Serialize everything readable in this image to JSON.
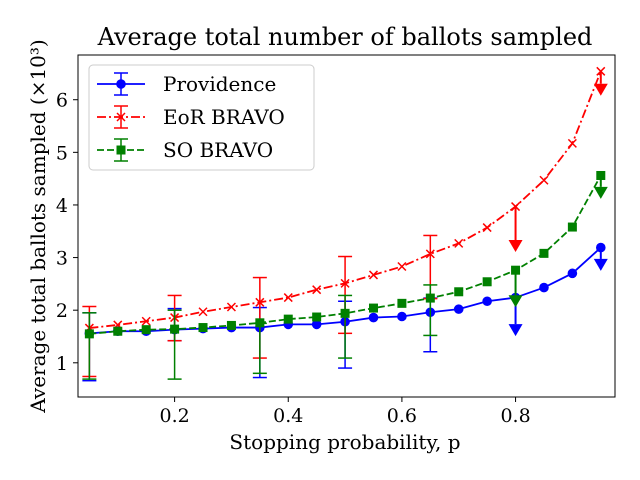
{
  "chart_data": {
    "type": "line",
    "title": "Average total number of ballots sampled",
    "xlabel": "Stopping probability, p",
    "ylabel": "Average total ballots sampled (×10³)",
    "xlim": [
      0.03,
      0.975
    ],
    "ylim": [
      0.35,
      6.85
    ],
    "xticks": [
      0.2,
      0.4,
      0.6,
      0.8
    ],
    "xtick_labels": [
      "0.2",
      "0.4",
      "0.6",
      "0.8"
    ],
    "yticks": [
      1,
      2,
      3,
      4,
      5,
      6
    ],
    "ytick_labels": [
      "1",
      "2",
      "3",
      "4",
      "5",
      "6"
    ],
    "grid": false,
    "legend_position": "top-left",
    "x": [
      0.05,
      0.1,
      0.15,
      0.2,
      0.25,
      0.3,
      0.35,
      0.4,
      0.45,
      0.5,
      0.55,
      0.6,
      0.65,
      0.7,
      0.75,
      0.8,
      0.85,
      0.9,
      0.95
    ],
    "series": [
      {
        "name": "Providence",
        "color": "#0000ff",
        "line_style": "solid",
        "marker": "circle",
        "values": [
          1.56,
          1.6,
          1.6,
          1.63,
          1.65,
          1.67,
          1.67,
          1.73,
          1.73,
          1.78,
          1.86,
          1.88,
          1.96,
          2.02,
          2.17,
          2.24,
          2.43,
          2.7,
          3.19
        ],
        "error_bars": [
          {
            "x": 0.05,
            "low": 0.66,
            "high": 1.95
          },
          {
            "x": 0.2,
            "low": 1.42,
            "high": 2.03
          },
          {
            "x": 0.35,
            "low": 0.72,
            "high": 2.05
          },
          {
            "x": 0.5,
            "low": 0.9,
            "high": 2.17
          },
          {
            "x": 0.65,
            "low": 1.21,
            "high": 2.23
          }
        ],
        "arrows": [
          {
            "x": 0.8,
            "from": 2.24,
            "to": 1.62
          },
          {
            "x": 0.95,
            "from": 3.19,
            "to": 2.86
          }
        ]
      },
      {
        "name": "EoR BRAVO",
        "color": "#ff0000",
        "line_style": "dashdot",
        "marker": "x",
        "values": [
          1.66,
          1.72,
          1.79,
          1.86,
          1.97,
          2.06,
          2.15,
          2.24,
          2.39,
          2.51,
          2.67,
          2.83,
          3.07,
          3.27,
          3.57,
          3.97,
          4.47,
          5.17,
          6.54
        ],
        "error_bars": [
          {
            "x": 0.05,
            "low": 0.74,
            "high": 2.07
          },
          {
            "x": 0.2,
            "low": 1.42,
            "high": 2.28
          },
          {
            "x": 0.35,
            "low": 1.09,
            "high": 2.62
          },
          {
            "x": 0.5,
            "low": 1.56,
            "high": 3.02
          },
          {
            "x": 0.65,
            "low": 2.22,
            "high": 3.42
          }
        ],
        "arrows": [
          {
            "x": 0.8,
            "from": 3.97,
            "to": 3.22
          },
          {
            "x": 0.95,
            "from": 6.54,
            "to": 6.19
          }
        ]
      },
      {
        "name": "SO BRAVO",
        "color": "#008000",
        "line_style": "dashed",
        "marker": "square",
        "values": [
          1.55,
          1.6,
          1.63,
          1.64,
          1.67,
          1.71,
          1.76,
          1.83,
          1.87,
          1.94,
          2.04,
          2.13,
          2.23,
          2.35,
          2.54,
          2.76,
          3.08,
          3.58,
          4.56
        ],
        "error_bars": [
          {
            "x": 0.05,
            "low": 0.69,
            "high": 1.95
          },
          {
            "x": 0.2,
            "low": 0.69,
            "high": 2.0
          },
          {
            "x": 0.35,
            "low": 0.8,
            "high": 1.75
          },
          {
            "x": 0.5,
            "low": 1.09,
            "high": 2.28
          },
          {
            "x": 0.65,
            "low": 1.52,
            "high": 2.48
          }
        ],
        "arrows": [
          {
            "x": 0.8,
            "from": 2.76,
            "to": 2.17
          },
          {
            "x": 0.95,
            "from": 4.56,
            "to": 4.23
          }
        ]
      }
    ]
  }
}
